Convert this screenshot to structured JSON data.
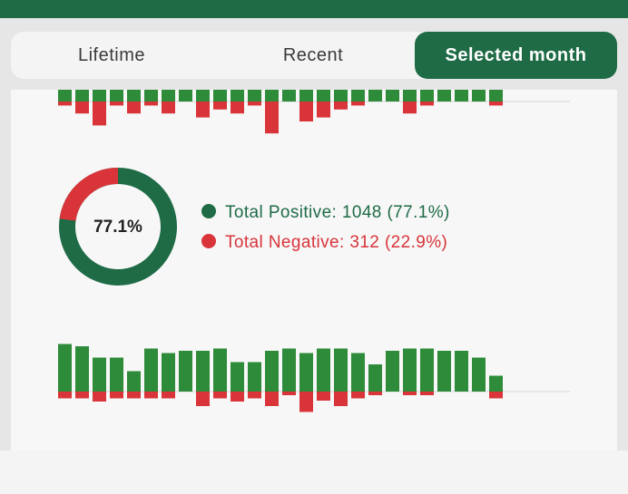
{
  "tabs": [
    {
      "label": "Lifetime",
      "selected": false
    },
    {
      "label": "Recent",
      "selected": false
    },
    {
      "label": "Selected month",
      "selected": true
    }
  ],
  "colors": {
    "brand": "#1e6b46",
    "positive_bar": "#2e8b3a",
    "negative_bar": "#d9343a",
    "donut_positive": "#1e6b46",
    "legend_positive_text": "#1e6b46",
    "legend_negative_text": "#d9343a"
  },
  "summary": {
    "center_label": "77.1%",
    "positive_percent": 77.1,
    "negative_percent": 22.9,
    "legend": {
      "positive": "Total Positive: 1048 (77.1%)",
      "negative": "Total Negative: 312 (22.9%)"
    }
  },
  "chart_data": [
    {
      "type": "bar",
      "positive": [
        3,
        3,
        3,
        3,
        3,
        3,
        3,
        3,
        3,
        3,
        3,
        3,
        3,
        3,
        3,
        3,
        3,
        3,
        3,
        3,
        3,
        3,
        3,
        3,
        3,
        3
      ],
      "negative": [
        1,
        3,
        6,
        1,
        3,
        1,
        3,
        0,
        4,
        2,
        3,
        1,
        8,
        0,
        5,
        4,
        2,
        1,
        0,
        0,
        3,
        1,
        0,
        0,
        0,
        1
      ]
    },
    {
      "type": "bar",
      "positive": [
        10.5,
        10,
        7.5,
        7.5,
        4.5,
        9.5,
        8.5,
        9,
        9,
        9.5,
        6.5,
        6.5,
        9,
        9.5,
        8.5,
        9.5,
        9.5,
        8.5,
        6,
        9,
        9.5,
        9.5,
        9,
        9,
        7.5,
        3.5
      ],
      "negative": [
        1.5,
        1.5,
        2.2,
        1.5,
        1.5,
        1.5,
        1.5,
        0,
        3.2,
        1.5,
        2.2,
        1.5,
        3.2,
        0.8,
        4.5,
        2,
        3.2,
        1.5,
        0.8,
        0,
        0.8,
        0.8,
        0,
        0,
        0,
        1.5
      ]
    }
  ]
}
